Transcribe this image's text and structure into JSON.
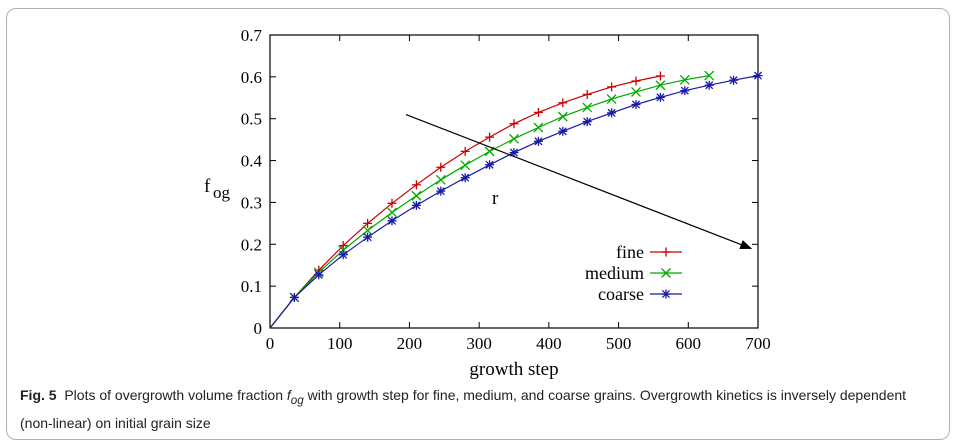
{
  "chart_data": {
    "type": "line",
    "xlabel": "growth step",
    "ylabel_main": "f",
    "ylabel_sub": "og",
    "xlim": [
      0,
      700
    ],
    "ylim": [
      0,
      0.7
    ],
    "xticks": [
      "0",
      "100",
      "200",
      "300",
      "400",
      "500",
      "600",
      "700"
    ],
    "yticks": [
      "0",
      "0.1",
      "0.2",
      "0.3",
      "0.4",
      "0.5",
      "0.6",
      "0.7"
    ],
    "legend_position": "bottom-right",
    "annotation": "r",
    "series": [
      {
        "name": "fine",
        "color": "#cc0000",
        "marker": "plus",
        "x": [
          0,
          35,
          70,
          105,
          140,
          175,
          210,
          245,
          280,
          315,
          350,
          385,
          420,
          455,
          490,
          525,
          560
        ],
        "y": [
          0,
          0.073,
          0.138,
          0.197,
          0.25,
          0.298,
          0.342,
          0.384,
          0.422,
          0.456,
          0.488,
          0.515,
          0.538,
          0.558,
          0.576,
          0.59,
          0.602
        ]
      },
      {
        "name": "medium",
        "color": "#00aa00",
        "marker": "x",
        "x": [
          0,
          35,
          70,
          105,
          140,
          175,
          210,
          245,
          280,
          315,
          350,
          385,
          420,
          455,
          490,
          525,
          560,
          595,
          630
        ],
        "y": [
          0,
          0.073,
          0.133,
          0.186,
          0.233,
          0.276,
          0.316,
          0.354,
          0.389,
          0.422,
          0.452,
          0.479,
          0.505,
          0.527,
          0.547,
          0.564,
          0.58,
          0.593,
          0.603
        ]
      },
      {
        "name": "coarse",
        "color": "#1a1aaa",
        "marker": "star",
        "x": [
          0,
          35,
          70,
          105,
          140,
          175,
          210,
          245,
          280,
          315,
          350,
          385,
          420,
          455,
          490,
          525,
          560,
          595,
          630,
          665,
          700
        ],
        "y": [
          0,
          0.073,
          0.127,
          0.175,
          0.217,
          0.256,
          0.293,
          0.327,
          0.359,
          0.39,
          0.419,
          0.446,
          0.47,
          0.493,
          0.514,
          0.534,
          0.551,
          0.567,
          0.58,
          0.592,
          0.603
        ]
      }
    ],
    "arrow": {
      "from": [
        195,
        0.51
      ],
      "to": [
        690,
        0.19
      ]
    }
  },
  "caption": {
    "label": "Fig. 5",
    "text_before": "Plots of overgrowth volume fraction ",
    "symbol_main": "f",
    "symbol_sub": "og",
    "text_after": " with growth step for fine, medium, and coarse grains. Overgrowth kinetics is inversely dependent (non-linear) on initial grain size"
  }
}
